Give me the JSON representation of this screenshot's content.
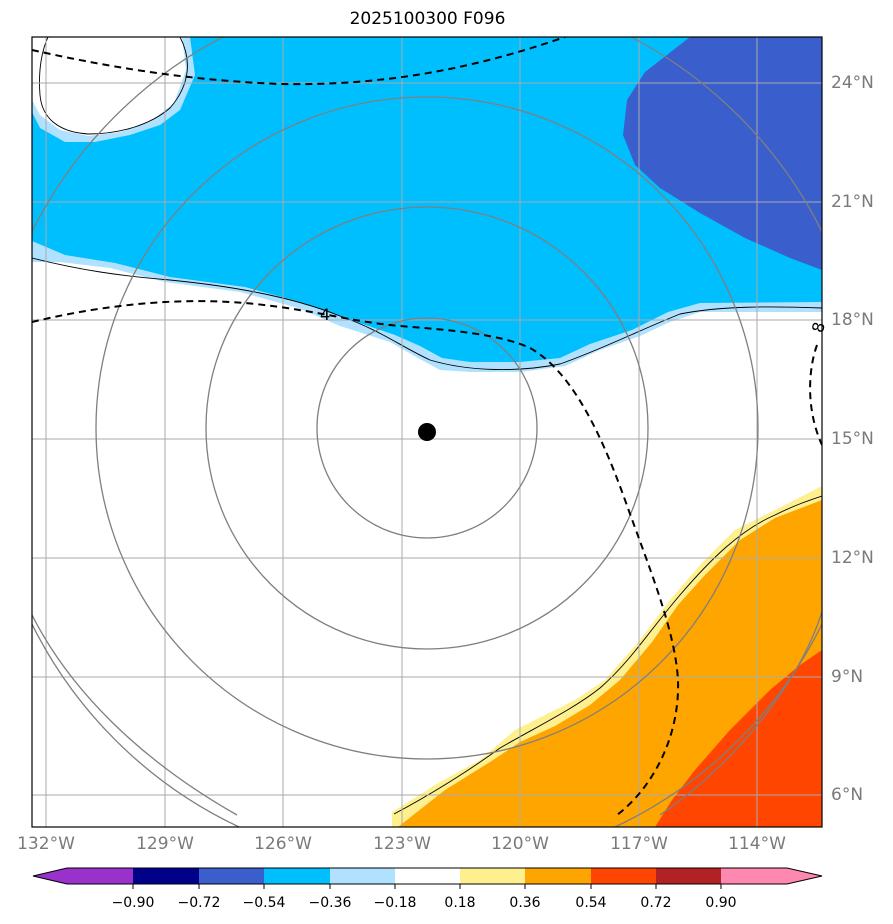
{
  "title": "2025100300 F096",
  "map": {
    "lon_labels": [
      "132°W",
      "129°W",
      "126°W",
      "123°W",
      "120°W",
      "117°W",
      "114°W"
    ],
    "lat_labels": [
      "24°N",
      "21°N",
      "18°N",
      "15°N",
      "12°N",
      "9°N",
      "6°N"
    ],
    "contour_labels": [
      "4",
      "8"
    ],
    "storm_center": {
      "lon": "122.5°W",
      "lat": "15.2°N"
    },
    "colors": {
      "negative_fill": "#00bfff",
      "strong_negative_fill": "#3a5fcd",
      "weak_negative_fill": "#b0e2ff",
      "weak_positive_fill": "#fff08f",
      "positive_fill": "#ffa500",
      "strong_positive_fill": "#ff4500"
    }
  },
  "colorbar": {
    "ticks": [
      "−0.90",
      "−0.72",
      "−0.54",
      "−0.36",
      "−0.18",
      "0.18",
      "0.36",
      "0.54",
      "0.72",
      "0.90"
    ],
    "colors": [
      "#9932cc",
      "#00008b",
      "#3a5fcd",
      "#00bfff",
      "#b0e2ff",
      "#ffffff",
      "#fff08f",
      "#ffa500",
      "#ff4500",
      "#b22222",
      "#ff88b0"
    ]
  }
}
